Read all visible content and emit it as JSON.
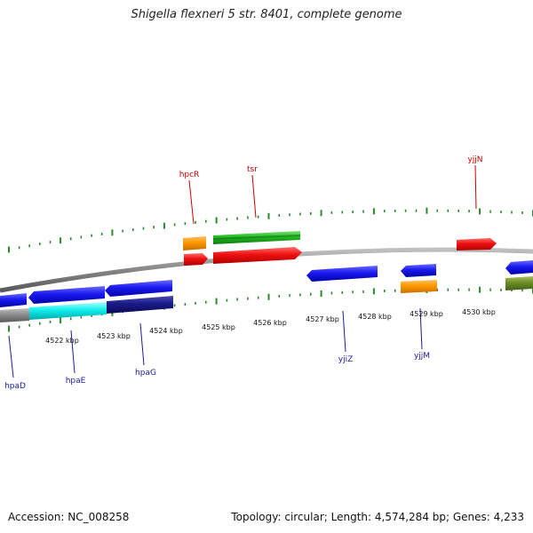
{
  "title": "Shigella flexneri 5 str. 8401, complete genome",
  "footer": {
    "accession": "Accession: NC_008258",
    "summary": "Topology: circular; Length: 4,574,284 bp; Genes: 4,233"
  },
  "colors": {
    "forward_label": "#cc0000",
    "reverse_label": "#1a1aa0",
    "tick": "#2a8a2a",
    "backbone": "#8a8a8a"
  },
  "kbp_labels": [
    "4522 kbp",
    "4523 kbp",
    "4524 kbp",
    "4525 kbp",
    "4526 kbp",
    "4527 kbp",
    "4528 kbp",
    "4529 kbp",
    "4530 kbp"
  ],
  "gene_labels": {
    "hpcR": "hpcR",
    "tsr": "tsr",
    "yjjN": "yjjN",
    "hpaD": "hpaD",
    "hpaE": "hpaE",
    "hpaG": "hpaG",
    "yjiZ": "yjiZ",
    "yjjM": "yjjM"
  }
}
